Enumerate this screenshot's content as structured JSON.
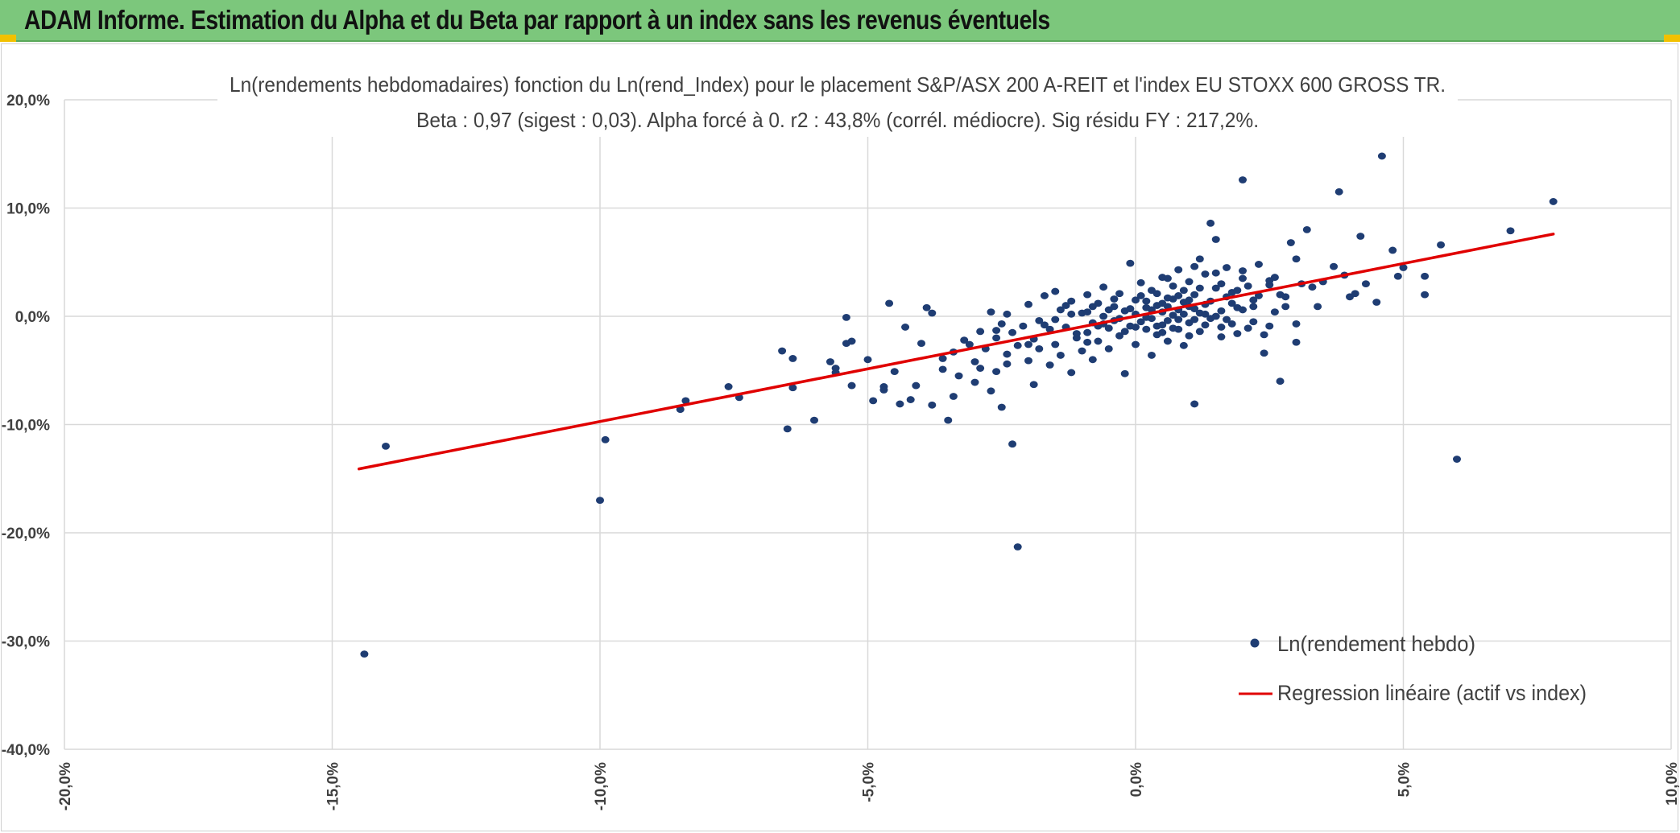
{
  "page": {
    "banner_title": "ADAM Informe. Estimation du Alpha et du Beta par rapport à un index sans les revenus éventuels",
    "banner_color": "#7cc77c",
    "accent_corner_color": "#f2c100"
  },
  "chart_data": {
    "type": "scatter",
    "title": "Ln(rendements hebdomadaires) fonction du Ln(rend_Index) pour le placement S&P/ASX 200 A-REIT et l'index EU STOXX 600 GROSS TR.",
    "subtitle": "Beta : 0,97 (sigest : 0,03). Alpha forcé à 0. r2 : 43,8% (corrél. médiocre). Sig résidu FY : 217,2%.",
    "xlabel": "",
    "ylabel": "",
    "xlim": [
      -20,
      10
    ],
    "ylim": [
      -40,
      20
    ],
    "x_ticks": [
      -20,
      -15,
      -10,
      -5,
      0,
      5,
      10
    ],
    "y_ticks": [
      20,
      10,
      0,
      -10,
      -20,
      -30,
      -40
    ],
    "x_tick_labels": [
      "-20,0%",
      "-15,0%",
      "-10,0%",
      "-5,0%",
      "0,0%",
      "5,0%",
      "10,0%"
    ],
    "y_tick_labels": [
      "20,0%",
      "10,0%",
      "0,0%",
      "-10,0%",
      "-20,0%",
      "-30,0%",
      "-40,0%"
    ],
    "grid": true,
    "legend_position": "bottom-right",
    "series": [
      {
        "name": "Ln(rendement hebdo)",
        "kind": "scatter",
        "color": "#1f3d73",
        "points": [
          [
            -14.4,
            -31.2
          ],
          [
            -14.0,
            -12.0
          ],
          [
            -10.0,
            -17.0
          ],
          [
            -9.9,
            -11.4
          ],
          [
            -8.5,
            -8.6
          ],
          [
            -8.4,
            -7.8
          ],
          [
            -7.6,
            -6.5
          ],
          [
            -7.4,
            -7.5
          ],
          [
            -6.6,
            -3.2
          ],
          [
            -6.5,
            -10.4
          ],
          [
            -6.4,
            -3.9
          ],
          [
            -6.4,
            -6.6
          ],
          [
            -6.0,
            -9.6
          ],
          [
            -5.7,
            -4.2
          ],
          [
            -5.6,
            -4.8
          ],
          [
            -5.6,
            -5.2
          ],
          [
            -5.4,
            -0.1
          ],
          [
            -5.4,
            -2.5
          ],
          [
            -5.3,
            -2.3
          ],
          [
            -5.3,
            -6.4
          ],
          [
            -5.0,
            -4.0
          ],
          [
            -4.9,
            -7.8
          ],
          [
            -4.7,
            -6.5
          ],
          [
            -4.7,
            -6.8
          ],
          [
            -4.6,
            1.2
          ],
          [
            -4.5,
            -5.1
          ],
          [
            -4.4,
            -8.1
          ],
          [
            -4.3,
            -1.0
          ],
          [
            -4.2,
            -7.7
          ],
          [
            -4.1,
            -6.4
          ],
          [
            -4.0,
            -2.5
          ],
          [
            -3.9,
            0.8
          ],
          [
            -3.8,
            0.3
          ],
          [
            -3.8,
            -8.2
          ],
          [
            -3.6,
            -3.9
          ],
          [
            -3.6,
            -4.9
          ],
          [
            -3.5,
            -9.6
          ],
          [
            -3.4,
            -3.3
          ],
          [
            -3.4,
            -7.4
          ],
          [
            -3.3,
            -5.5
          ],
          [
            -3.2,
            -2.2
          ],
          [
            -3.1,
            -2.6
          ],
          [
            -3.0,
            -4.2
          ],
          [
            -3.0,
            -6.1
          ],
          [
            -2.9,
            -1.4
          ],
          [
            -2.9,
            -4.8
          ],
          [
            -2.8,
            -3.0
          ],
          [
            -2.7,
            -6.9
          ],
          [
            -2.7,
            0.4
          ],
          [
            -2.6,
            -2.0
          ],
          [
            -2.6,
            -5.1
          ],
          [
            -2.5,
            -8.4
          ],
          [
            -2.5,
            -0.7
          ],
          [
            -2.4,
            -3.5
          ],
          [
            -2.4,
            -4.4
          ],
          [
            -2.3,
            -1.5
          ],
          [
            -2.3,
            -11.8
          ],
          [
            -2.2,
            -21.3
          ],
          [
            -2.2,
            -2.7
          ],
          [
            -2.1,
            -0.9
          ],
          [
            -2.0,
            1.1
          ],
          [
            -2.0,
            -4.1
          ],
          [
            -1.9,
            -6.3
          ],
          [
            -1.9,
            -2.1
          ],
          [
            -1.8,
            -0.4
          ],
          [
            -1.8,
            -3.0
          ],
          [
            -1.7,
            1.9
          ],
          [
            -1.6,
            -1.2
          ],
          [
            -1.6,
            -4.5
          ],
          [
            -1.5,
            2.3
          ],
          [
            -1.5,
            -2.6
          ],
          [
            -1.4,
            0.6
          ],
          [
            -1.4,
            -3.6
          ],
          [
            -1.3,
            -1.0
          ],
          [
            -1.2,
            -5.2
          ],
          [
            -1.2,
            1.4
          ],
          [
            -1.1,
            -2.0
          ],
          [
            -1.0,
            0.3
          ],
          [
            -1.0,
            -3.2
          ],
          [
            -0.9,
            2.0
          ],
          [
            -0.9,
            -1.5
          ],
          [
            -0.8,
            -0.6
          ],
          [
            -0.8,
            -4.0
          ],
          [
            -0.7,
            1.2
          ],
          [
            -0.7,
            -2.3
          ],
          [
            -0.6,
            0.0
          ],
          [
            -0.6,
            2.7
          ],
          [
            -0.5,
            -1.1
          ],
          [
            -0.5,
            -3.0
          ],
          [
            -0.4,
            0.9
          ],
          [
            -0.4,
            -0.4
          ],
          [
            -0.3,
            2.1
          ],
          [
            -0.3,
            -1.8
          ],
          [
            -0.2,
            0.5
          ],
          [
            -0.2,
            -5.3
          ],
          [
            -0.1,
            4.9
          ],
          [
            -0.1,
            -0.9
          ],
          [
            0.0,
            1.5
          ],
          [
            0.0,
            -2.6
          ],
          [
            0.0,
            0.2
          ],
          [
            0.1,
            -0.5
          ],
          [
            0.1,
            3.1
          ],
          [
            0.2,
            -1.2
          ],
          [
            0.2,
            0.8
          ],
          [
            0.3,
            2.4
          ],
          [
            0.3,
            -3.6
          ],
          [
            0.3,
            -0.2
          ],
          [
            0.4,
            1.0
          ],
          [
            0.4,
            -1.7
          ],
          [
            0.5,
            0.4
          ],
          [
            0.5,
            3.6
          ],
          [
            0.5,
            -0.8
          ],
          [
            0.6,
            1.7
          ],
          [
            0.6,
            -2.3
          ],
          [
            0.7,
            0.1
          ],
          [
            0.7,
            2.8
          ],
          [
            0.7,
            -1.1
          ],
          [
            0.8,
            0.6
          ],
          [
            0.8,
            4.3
          ],
          [
            0.8,
            -0.3
          ],
          [
            0.9,
            1.3
          ],
          [
            0.9,
            -2.7
          ],
          [
            1.0,
            0.9
          ],
          [
            1.0,
            3.2
          ],
          [
            1.0,
            -0.6
          ],
          [
            1.1,
            2.0
          ],
          [
            1.1,
            -8.1
          ],
          [
            1.2,
            0.3
          ],
          [
            1.2,
            5.3
          ],
          [
            1.2,
            -1.4
          ],
          [
            1.3,
            1.1
          ],
          [
            1.3,
            3.9
          ],
          [
            1.4,
            8.6
          ],
          [
            1.4,
            -0.2
          ],
          [
            1.5,
            2.6
          ],
          [
            1.5,
            7.1
          ],
          [
            1.6,
            0.5
          ],
          [
            1.6,
            -1.9
          ],
          [
            1.7,
            1.8
          ],
          [
            1.7,
            4.5
          ],
          [
            1.8,
            -0.7
          ],
          [
            1.8,
            2.2
          ],
          [
            1.9,
            0.8
          ],
          [
            2.0,
            12.6
          ],
          [
            2.0,
            3.5
          ],
          [
            2.1,
            -1.1
          ],
          [
            2.2,
            1.5
          ],
          [
            2.3,
            4.8
          ],
          [
            2.4,
            -3.4
          ],
          [
            2.5,
            2.9
          ],
          [
            2.6,
            0.4
          ],
          [
            2.7,
            -6.0
          ],
          [
            2.8,
            1.8
          ],
          [
            2.9,
            6.8
          ],
          [
            3.0,
            5.3
          ],
          [
            3.0,
            -2.4
          ],
          [
            3.1,
            3.0
          ],
          [
            3.2,
            8.0
          ],
          [
            3.3,
            2.7
          ],
          [
            3.5,
            3.2
          ],
          [
            3.7,
            4.6
          ],
          [
            3.8,
            11.5
          ],
          [
            3.9,
            3.8
          ],
          [
            4.0,
            1.8
          ],
          [
            4.1,
            2.1
          ],
          [
            4.2,
            7.4
          ],
          [
            4.3,
            3.0
          ],
          [
            4.5,
            1.3
          ],
          [
            4.6,
            14.8
          ],
          [
            4.8,
            6.1
          ],
          [
            4.9,
            3.7
          ],
          [
            5.0,
            4.5
          ],
          [
            5.4,
            3.7
          ],
          [
            5.4,
            2.0
          ],
          [
            5.7,
            6.6
          ],
          [
            6.0,
            -13.2
          ],
          [
            7.0,
            7.9
          ],
          [
            7.8,
            10.6
          ],
          [
            -0.8,
            0.9
          ],
          [
            -0.6,
            -0.7
          ],
          [
            -0.4,
            1.6
          ],
          [
            -0.3,
            -0.2
          ],
          [
            -0.1,
            0.7
          ],
          [
            0.0,
            -1.0
          ],
          [
            0.1,
            1.9
          ],
          [
            0.2,
            -0.1
          ],
          [
            0.3,
            0.6
          ],
          [
            0.4,
            -0.9
          ],
          [
            0.4,
            2.1
          ],
          [
            0.5,
            1.2
          ],
          [
            0.6,
            -0.4
          ],
          [
            0.6,
            0.9
          ],
          [
            0.7,
            1.6
          ],
          [
            0.8,
            -1.2
          ],
          [
            0.9,
            0.2
          ],
          [
            0.9,
            2.4
          ],
          [
            1.0,
            1.5
          ],
          [
            1.1,
            -0.3
          ],
          [
            1.1,
            0.7
          ],
          [
            1.2,
            2.6
          ],
          [
            1.3,
            -0.8
          ],
          [
            1.4,
            1.4
          ],
          [
            1.5,
            0.0
          ],
          [
            1.6,
            3.0
          ],
          [
            1.7,
            -0.3
          ],
          [
            1.8,
            1.2
          ],
          [
            1.9,
            -1.6
          ],
          [
            2.0,
            0.6
          ],
          [
            2.1,
            2.8
          ],
          [
            2.2,
            -0.5
          ],
          [
            2.3,
            1.9
          ],
          [
            2.5,
            -0.9
          ],
          [
            2.6,
            3.6
          ],
          [
            2.8,
            0.9
          ],
          [
            -1.5,
            -0.3
          ],
          [
            -1.3,
            1.0
          ],
          [
            -1.1,
            -1.6
          ],
          [
            -0.9,
            0.4
          ],
          [
            -0.7,
            -0.9
          ],
          [
            -0.5,
            0.6
          ],
          [
            -0.2,
            -1.4
          ],
          [
            0.2,
            1.4
          ],
          [
            0.5,
            -1.5
          ],
          [
            0.8,
            1.9
          ],
          [
            1.0,
            -1.8
          ],
          [
            1.3,
            0.2
          ],
          [
            1.6,
            -1.0
          ],
          [
            1.9,
            2.4
          ],
          [
            2.2,
            0.9
          ],
          [
            2.4,
            -1.7
          ],
          [
            2.7,
            2.0
          ],
          [
            3.0,
            -0.7
          ],
          [
            -2.6,
            -1.3
          ],
          [
            -2.4,
            0.2
          ],
          [
            -2.0,
            -2.6
          ],
          [
            -1.7,
            -0.8
          ],
          [
            -1.2,
            0.2
          ],
          [
            -0.9,
            -2.4
          ],
          [
            0.6,
            3.5
          ],
          [
            1.1,
            4.6
          ],
          [
            1.5,
            4.0
          ],
          [
            2.0,
            4.2
          ],
          [
            2.5,
            3.3
          ],
          [
            3.4,
            0.9
          ]
        ]
      },
      {
        "name": "Regression linéaire (actif vs index)",
        "kind": "line",
        "color": "#e00000",
        "points": [
          [
            -14.5,
            -14.1
          ],
          [
            7.8,
            7.6
          ]
        ]
      }
    ]
  }
}
